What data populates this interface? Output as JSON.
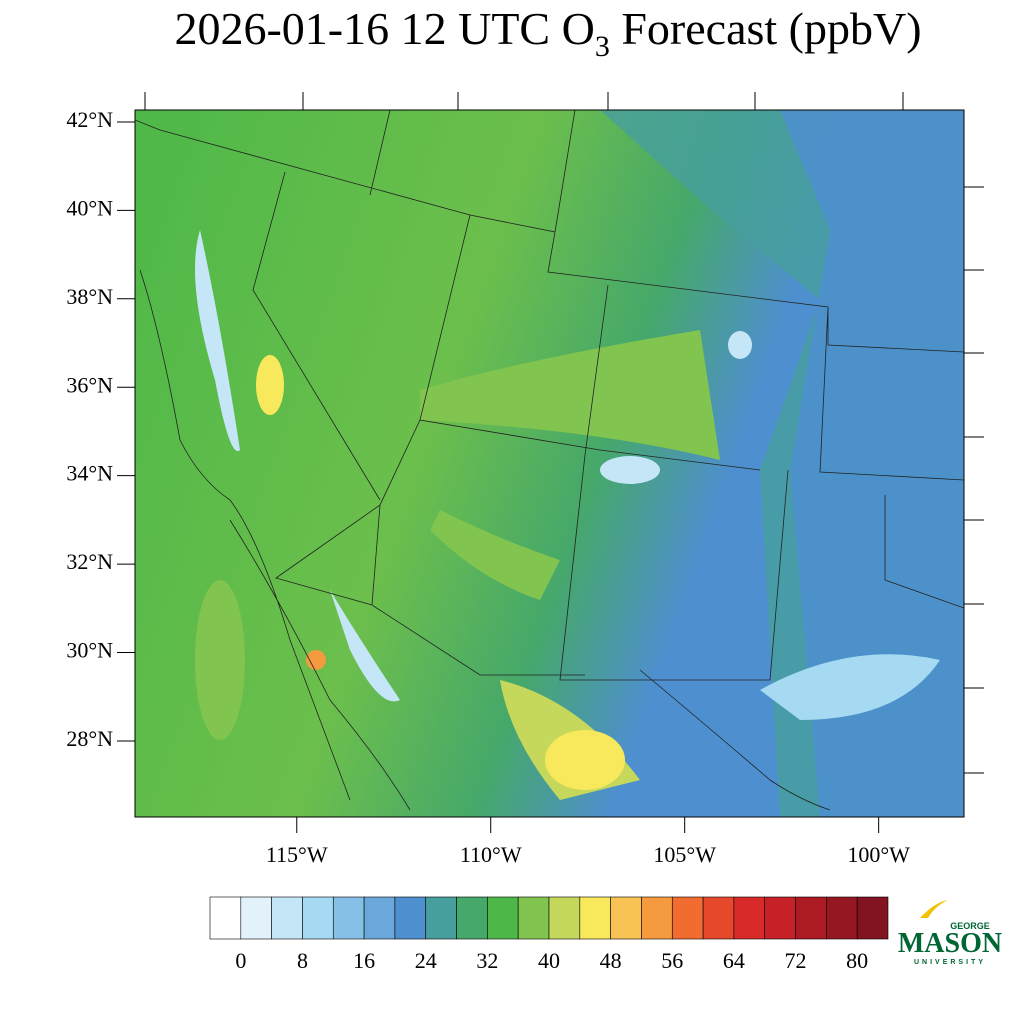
{
  "chart_data": {
    "type": "map",
    "title": {
      "main": "2026-01-16 12 UTC O",
      "sub": "3",
      "rest": " Forecast (ppbV)"
    },
    "lat_lim": [
      26.28,
      42.27
    ],
    "lon_lim": [
      -119.17,
      -97.8
    ],
    "lat_ticks": [
      {
        "value": 42,
        "label": "42°N"
      },
      {
        "value": 40,
        "label": "40°N"
      },
      {
        "value": 38,
        "label": "38°N"
      },
      {
        "value": 36,
        "label": "36°N"
      },
      {
        "value": 34,
        "label": "34°N"
      },
      {
        "value": 32,
        "label": "32°N"
      },
      {
        "value": 30,
        "label": "30°N"
      },
      {
        "value": 28,
        "label": "28°N"
      }
    ],
    "lon_ticks": [
      {
        "value": -115,
        "label": "115°W"
      },
      {
        "value": -110,
        "label": "110°W"
      },
      {
        "value": -105,
        "label": "105°W"
      },
      {
        "value": -100,
        "label": "100°W"
      }
    ],
    "colorbar": {
      "ticks": [
        0,
        8,
        16,
        24,
        32,
        40,
        48,
        56,
        64,
        72,
        80
      ],
      "colors": [
        "#ffffff",
        "#e2f2fb",
        "#c4e6f7",
        "#a6daf3",
        "#86c0e6",
        "#6aa8dc",
        "#4e8fcf",
        "#479f9d",
        "#46a86a",
        "#4db848",
        "#82c450",
        "#c5d85b",
        "#f8e85b",
        "#f8c354",
        "#f69a3f",
        "#f26b30",
        "#e5482b",
        "#d92a2a",
        "#c52127",
        "#ac1b24",
        "#951722",
        "#821320"
      ]
    },
    "logo": {
      "top": "GEORGE",
      "name": "MASON",
      "bottom": "UNIVERSITY"
    }
  }
}
